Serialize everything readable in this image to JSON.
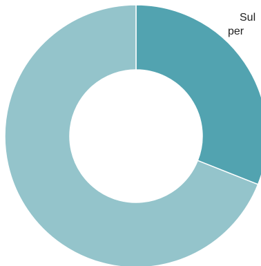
{
  "chart_data": {
    "type": "pie",
    "donut": true,
    "start_angle_deg": 0,
    "direction": "clockwise",
    "slices": [
      {
        "label": "",
        "value": 31,
        "color": "#52a3b0"
      },
      {
        "label": "",
        "value": 69,
        "color": "#94c4cb"
      }
    ],
    "title": "",
    "legend_text": [
      "Sul",
      "per"
    ],
    "slice_border_color": "#ffffff"
  }
}
